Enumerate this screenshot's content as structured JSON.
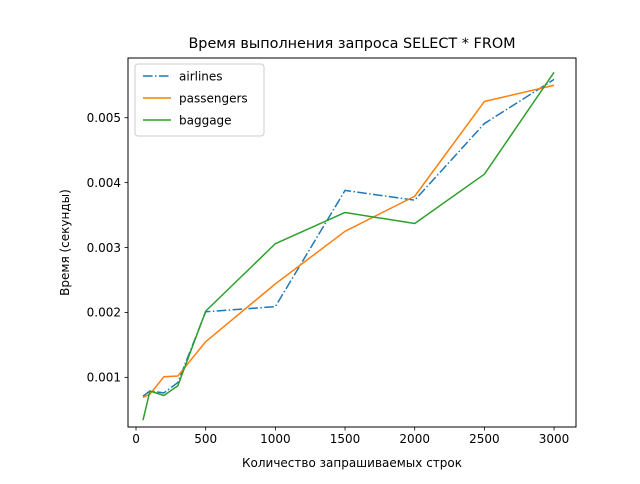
{
  "chart_data": {
    "type": "line",
    "title": "Время выполнения запроса SELECT * FROM",
    "xlabel": "Количество запрашиваемых строк",
    "ylabel": "Время (секунды)",
    "xlim": [
      -57.5,
      3157.5
    ],
    "ylim": [
      0.000235,
      0.00592
    ],
    "x_ticks": [
      0,
      500,
      1000,
      1500,
      2000,
      2500,
      3000
    ],
    "x_tick_labels": [
      "0",
      "500",
      "1000",
      "1500",
      "2000",
      "2500",
      "3000"
    ],
    "y_ticks": [
      0.001,
      0.002,
      0.003,
      0.004,
      0.005
    ],
    "y_tick_labels": [
      "0.001",
      "0.002",
      "0.003",
      "0.004",
      "0.005"
    ],
    "grid": false,
    "legend_position": "upper left",
    "series": [
      {
        "name": "airlines",
        "color": "#1f77b4",
        "style": "dashdot",
        "x": [
          50,
          100,
          200,
          300,
          500,
          1000,
          1500,
          2000,
          2500,
          3000
        ],
        "y": [
          0.00071,
          0.00079,
          0.00076,
          0.00092,
          0.00201,
          0.00209,
          0.00388,
          0.00373,
          0.00491,
          0.00559
        ]
      },
      {
        "name": "passengers",
        "color": "#ff7f0e",
        "style": "solid",
        "x": [
          50,
          100,
          200,
          300,
          500,
          1000,
          1500,
          2000,
          2500,
          3000
        ],
        "y": [
          0.00069,
          0.00074,
          0.00101,
          0.00102,
          0.00155,
          0.00244,
          0.00325,
          0.00379,
          0.00525,
          0.0055
        ]
      },
      {
        "name": "baggage",
        "color": "#2ca02c",
        "style": "solid",
        "x": [
          50,
          100,
          200,
          300,
          500,
          1000,
          1500,
          2000,
          2500,
          3000
        ],
        "y": [
          0.00034,
          0.00079,
          0.00072,
          0.00087,
          0.00202,
          0.00306,
          0.00354,
          0.00337,
          0.00413,
          0.0057
        ]
      }
    ]
  }
}
